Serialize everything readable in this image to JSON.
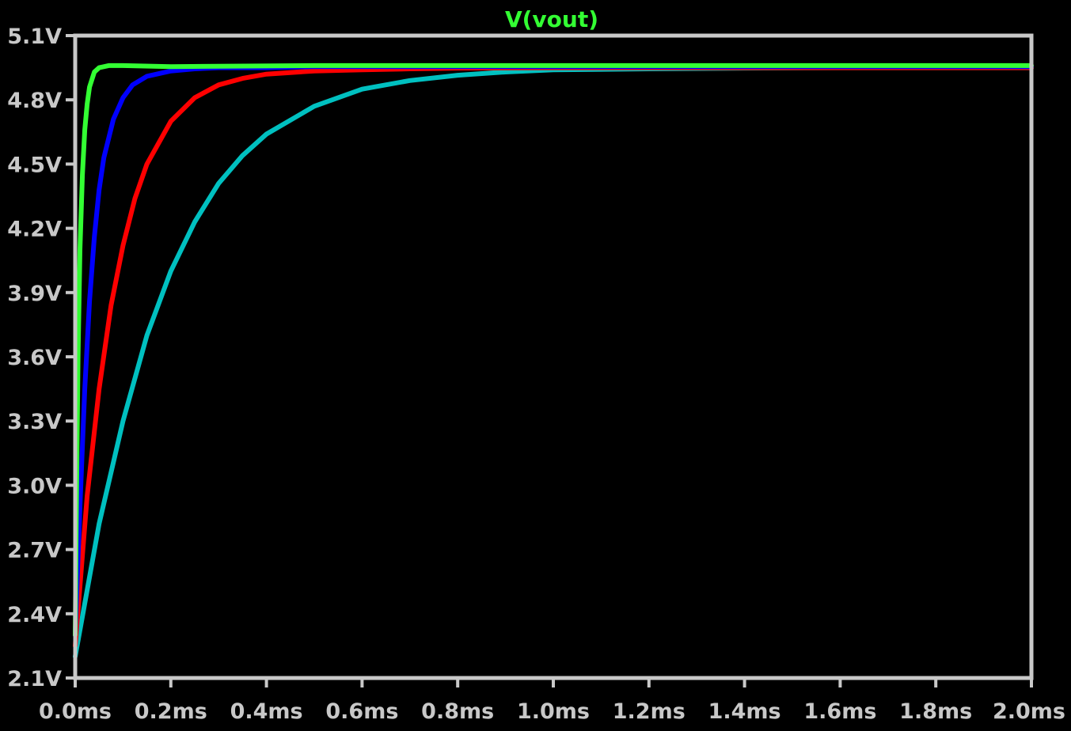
{
  "chart_data": {
    "type": "line",
    "title": "V(vout)",
    "title_color": "#33ff33",
    "background_color": "#000000",
    "frame_color": "#c8c8c8",
    "x_unit": "ms",
    "y_unit": "V",
    "xlim": [
      0.0,
      2.0
    ],
    "ylim": [
      2.1,
      5.1
    ],
    "x_ticks": [
      "0.0ms",
      "0.2ms",
      "0.4ms",
      "0.6ms",
      "0.8ms",
      "1.0ms",
      "1.2ms",
      "1.4ms",
      "1.6ms",
      "1.8ms",
      "2.0ms"
    ],
    "y_ticks": [
      "5.1V",
      "4.8V",
      "4.5V",
      "4.2V",
      "3.9V",
      "3.6V",
      "3.3V",
      "3.0V",
      "2.7V",
      "2.4V",
      "2.1V"
    ],
    "x_tick_values": [
      0.0,
      0.2,
      0.4,
      0.6,
      0.8,
      1.0,
      1.2,
      1.4,
      1.6,
      1.8,
      2.0
    ],
    "y_tick_values": [
      5.1,
      4.8,
      4.5,
      4.2,
      3.9,
      3.6,
      3.3,
      3.0,
      2.7,
      2.4,
      2.1
    ],
    "grid": false,
    "series": [
      {
        "color": "#00c0c0",
        "x": [
          0.0,
          0.05,
          0.1,
          0.15,
          0.2,
          0.25,
          0.3,
          0.35,
          0.4,
          0.5,
          0.6,
          0.7,
          0.8,
          0.9,
          1.0,
          1.2,
          1.4,
          1.6,
          1.8,
          2.0
        ],
        "y": [
          2.2,
          2.82,
          3.3,
          3.7,
          4.0,
          4.23,
          4.41,
          4.54,
          4.64,
          4.77,
          4.85,
          4.89,
          4.915,
          4.93,
          4.94,
          4.945,
          4.948,
          4.95,
          4.95,
          4.95
        ]
      },
      {
        "color": "#ff0000",
        "x": [
          0.0,
          0.025,
          0.05,
          0.075,
          0.1,
          0.125,
          0.15,
          0.2,
          0.25,
          0.3,
          0.35,
          0.4,
          0.5,
          0.6,
          0.7,
          0.8,
          1.0,
          1.5,
          2.0
        ],
        "y": [
          2.25,
          2.95,
          3.45,
          3.84,
          4.12,
          4.34,
          4.5,
          4.7,
          4.81,
          4.87,
          4.9,
          4.92,
          4.935,
          4.94,
          4.945,
          4.948,
          4.95,
          4.95,
          4.95
        ]
      },
      {
        "color": "#0000ff",
        "x": [
          0.0,
          0.01,
          0.02,
          0.03,
          0.04,
          0.05,
          0.06,
          0.08,
          0.1,
          0.12,
          0.15,
          0.2,
          0.25,
          0.3,
          0.4,
          0.5,
          1.0,
          2.0
        ],
        "y": [
          2.3,
          2.9,
          3.45,
          3.86,
          4.16,
          4.38,
          4.53,
          4.71,
          4.81,
          4.87,
          4.91,
          4.935,
          4.945,
          4.95,
          4.95,
          4.955,
          4.955,
          4.955
        ]
      },
      {
        "color": "#33ff33",
        "x": [
          0.0,
          0.003,
          0.006,
          0.01,
          0.015,
          0.02,
          0.025,
          0.03,
          0.04,
          0.05,
          0.07,
          0.1,
          0.2,
          0.5,
          1.0,
          2.0
        ],
        "y": [
          2.3,
          3.0,
          3.6,
          4.1,
          4.45,
          4.66,
          4.78,
          4.86,
          4.93,
          4.95,
          4.96,
          4.96,
          4.955,
          4.96,
          4.96,
          4.96
        ]
      }
    ]
  }
}
